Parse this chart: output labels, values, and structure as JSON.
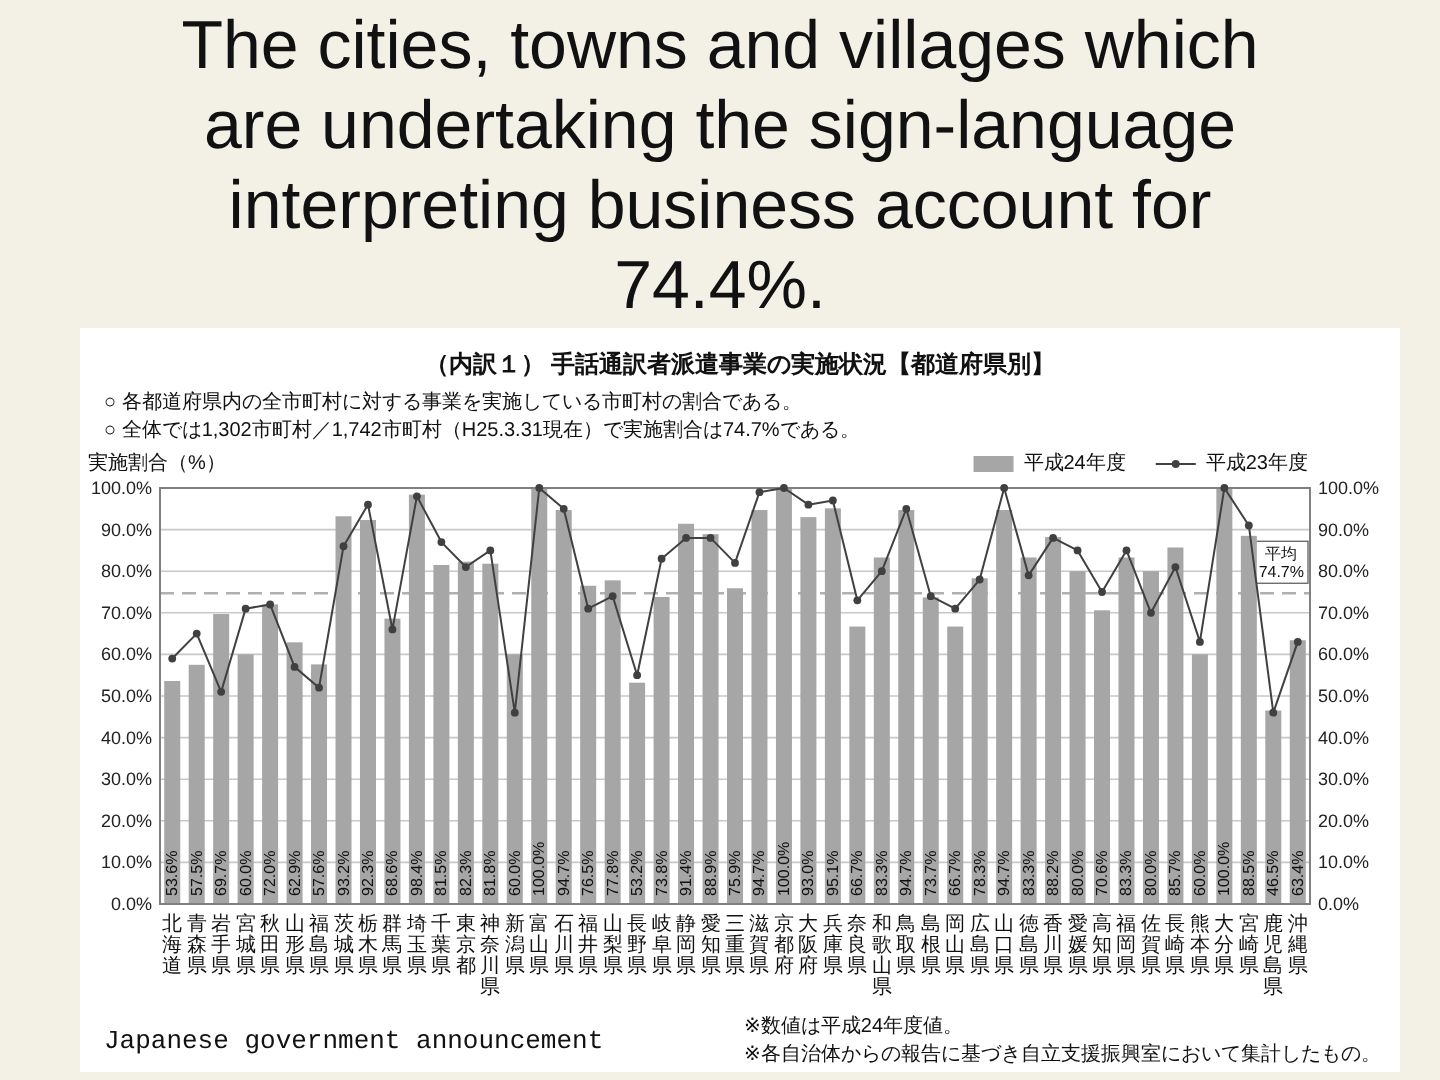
{
  "chart_data": {
    "type": "bar",
    "title": "The cities, towns and villages which are undertaking the sign-language interpreting business account for 74.4%.",
    "subtitle": "（内訳１） 手話通訳者派遣事業の実施状況【都道府県別】",
    "ylabel": "実施割合（%）",
    "annotations": [
      "○ 各都道府県内の全市町村に対する事業を実施している市町村の割合である。",
      "○ 全体では1,302市町村／1,742市町村（H25.3.31現在）で実施割合は74.7%である。",
      "Japanese government announcement",
      "※数値は平成24年度値。",
      "※各自治体からの報告に基づき自立支援振興室において集計したもの。"
    ],
    "categories": [
      "北海道",
      "青森県",
      "岩手県",
      "宮城県",
      "秋田県",
      "山形県",
      "福島県",
      "茨城県",
      "栃木県",
      "群馬県",
      "埼玉県",
      "千葉県",
      "東京都",
      "神奈川県",
      "新潟県",
      "富山県",
      "石川県",
      "福井県",
      "山梨県",
      "長野県",
      "岐阜県",
      "静岡県",
      "愛知県",
      "三重県",
      "滋賀県",
      "京都府",
      "大阪府",
      "兵庫県",
      "奈良県",
      "和歌山県",
      "鳥取県",
      "島根県",
      "岡山県",
      "広島県",
      "山口県",
      "徳島県",
      "香川県",
      "愛媛県",
      "高知県",
      "福岡県",
      "佐賀県",
      "長崎県",
      "熊本県",
      "大分県",
      "宮崎県",
      "鹿児島県",
      "沖縄県"
    ],
    "series": [
      {
        "name": "平成24年度",
        "color": "#a6a6a6",
        "values": [
          53.6,
          57.5,
          69.7,
          60.0,
          72.0,
          62.9,
          57.6,
          93.2,
          92.3,
          68.6,
          98.4,
          81.5,
          82.3,
          81.8,
          60.0,
          100.0,
          94.7,
          76.5,
          77.8,
          53.2,
          73.8,
          91.4,
          88.9,
          75.9,
          94.7,
          100.0,
          93.0,
          95.1,
          66.7,
          83.3,
          94.7,
          73.7,
          66.7,
          78.3,
          94.7,
          83.3,
          88.2,
          80.0,
          70.6,
          83.3,
          80.0,
          85.7,
          60.0,
          100.0,
          88.5,
          46.5,
          63.4
        ],
        "value_labels": [
          "53.6%",
          "57.5%",
          "69.7%",
          "60.0%",
          "72.0%",
          "62.9%",
          "57.6%",
          "93.2%",
          "92.3%",
          "68.6%",
          "98.4%",
          "81.5%",
          "82.3%",
          "81.8%",
          "60.0%",
          "100.0%",
          "94.7%",
          "76.5%",
          "77.8%",
          "53.2%",
          "73.8%",
          "91.4%",
          "88.9%",
          "75.9%",
          "94.7%",
          "100.0%",
          "93.0%",
          "95.1%",
          "66.7%",
          "83.3%",
          "94.7%",
          "73.7%",
          "66.7%",
          "78.3%",
          "94.7%",
          "83.3%",
          "88.2%",
          "80.0%",
          "70.6%",
          "83.3%",
          "80.0%",
          "85.7%",
          "60.0%",
          "100.0%",
          "88.5%",
          "46.5%",
          "63.4%"
        ]
      },
      {
        "name": "平成23年度",
        "type": "line",
        "color": "#404040",
        "values": [
          59,
          65,
          51,
          71,
          72,
          57,
          52,
          86,
          96,
          66,
          98,
          87,
          81,
          85,
          46,
          100,
          95,
          71,
          74,
          55,
          83,
          88,
          88,
          82,
          99,
          100,
          96,
          97,
          73,
          80,
          95,
          74,
          71,
          78,
          100,
          79,
          88,
          85,
          75,
          85,
          70,
          81,
          63,
          100,
          91,
          46,
          63
        ]
      }
    ],
    "ylim": [
      0,
      100
    ],
    "yticks": [
      {
        "value": 0,
        "label": "0.0%"
      },
      {
        "value": 10,
        "label": "10.0%"
      },
      {
        "value": 20,
        "label": "20.0%"
      },
      {
        "value": 30,
        "label": "30.0%"
      },
      {
        "value": 40,
        "label": "40.0%"
      },
      {
        "value": 50,
        "label": "50.0%"
      },
      {
        "value": 60,
        "label": "60.0%"
      },
      {
        "value": 70,
        "label": "70.0%"
      },
      {
        "value": 80,
        "label": "80.0%"
      },
      {
        "value": 90,
        "label": "90.0%"
      },
      {
        "value": 100,
        "label": "100.0%"
      }
    ],
    "y2lim": [
      0,
      100
    ],
    "y2ticks": [
      {
        "value": 0,
        "label": "0.0%"
      },
      {
        "value": 10,
        "label": "10.0%"
      },
      {
        "value": 20,
        "label": "20.0%"
      },
      {
        "value": 30,
        "label": "30.0%"
      },
      {
        "value": 40,
        "label": "40.0%"
      },
      {
        "value": 50,
        "label": "50.0%"
      },
      {
        "value": 60,
        "label": "60.0%"
      },
      {
        "value": 70,
        "label": "70.0%"
      },
      {
        "value": 80,
        "label": "80.0%"
      },
      {
        "value": 90,
        "label": "90.0%"
      },
      {
        "value": 100,
        "label": "100.0%"
      }
    ],
    "grid": "y",
    "legend": "top right",
    "marker": "circle",
    "ref_lines": [
      {
        "axis": "y",
        "value": 74.7,
        "label": "平均 74.7%",
        "color": "#b0b0b0",
        "line_style": "dashed"
      }
    ]
  }
}
